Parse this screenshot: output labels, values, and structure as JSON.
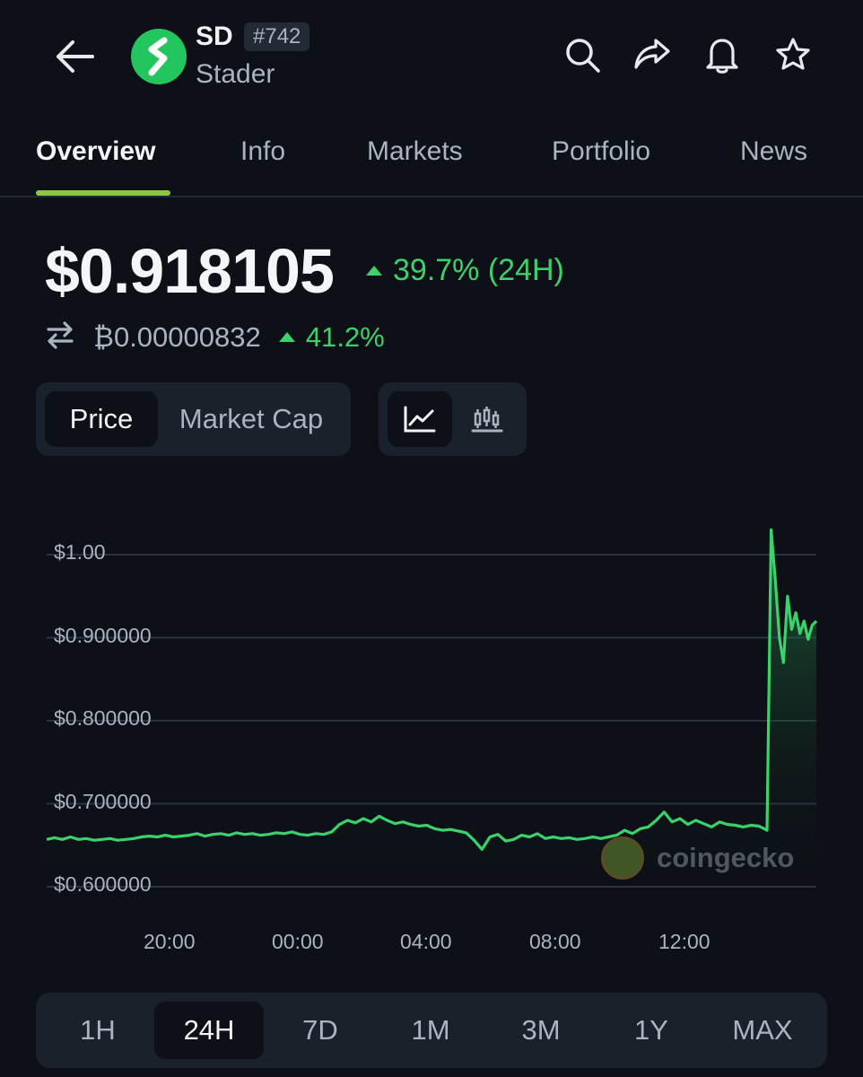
{
  "header": {
    "symbol": "SD",
    "rank": "#742",
    "name": "Stader"
  },
  "tabs": [
    {
      "label": "Overview",
      "active": true
    },
    {
      "label": "Info"
    },
    {
      "label": "Markets"
    },
    {
      "label": "Portfolio"
    },
    {
      "label": "News"
    }
  ],
  "price": {
    "usd": "$0.918105",
    "change_24h": "39.7% (24H)",
    "btc": "₿0.00000832",
    "btc_change": "41.2%"
  },
  "chart_toggle": {
    "price_label": "Price",
    "market_cap_label": "Market Cap",
    "selected": "Price",
    "style_selected": "line"
  },
  "chart_data": {
    "type": "area",
    "ylabels": [
      "$1.00",
      "$0.900000",
      "$0.800000",
      "$0.700000",
      "$0.600000"
    ],
    "yticks": [
      1.0,
      0.9,
      0.8,
      0.7,
      0.6
    ],
    "ylim": [
      0.6,
      1.0
    ],
    "xlabels": [
      "20:00",
      "00:00",
      "04:00",
      "08:00",
      "12:00"
    ],
    "color": "#39d26b",
    "series": [
      {
        "values": [
          0.657,
          0.659,
          0.657,
          0.66,
          0.657,
          0.658,
          0.656,
          0.657,
          0.658,
          0.656,
          0.657,
          0.658,
          0.66,
          0.661,
          0.66,
          0.662,
          0.66,
          0.661,
          0.662,
          0.664,
          0.661,
          0.663,
          0.664,
          0.662,
          0.665,
          0.663,
          0.664,
          0.662,
          0.663,
          0.665,
          0.664,
          0.666,
          0.663,
          0.662,
          0.664,
          0.663,
          0.666,
          0.675,
          0.68,
          0.677,
          0.682,
          0.678,
          0.685,
          0.68,
          0.676,
          0.678,
          0.675,
          0.673,
          0.674,
          0.67,
          0.668,
          0.669,
          0.667,
          0.665,
          0.656,
          0.645,
          0.66,
          0.663,
          0.655,
          0.657,
          0.662,
          0.66,
          0.664,
          0.658,
          0.66,
          0.658,
          0.659,
          0.657,
          0.658,
          0.66,
          0.658,
          0.66,
          0.662,
          0.668,
          0.664,
          0.67,
          0.672,
          0.68,
          0.69,
          0.678,
          0.682,
          0.675,
          0.68,
          0.676,
          0.672,
          0.678,
          0.675,
          0.674,
          0.672,
          0.674,
          0.673,
          0.668,
          1.03,
          0.97,
          0.9,
          0.87,
          0.95,
          0.91,
          0.93,
          0.905,
          0.92,
          0.898,
          0.915,
          0.92
        ]
      }
    ]
  },
  "timeframes": [
    {
      "label": "1H"
    },
    {
      "label": "24H",
      "active": true
    },
    {
      "label": "7D"
    },
    {
      "label": "1M"
    },
    {
      "label": "3M"
    },
    {
      "label": "1Y"
    },
    {
      "label": "MAX"
    }
  ],
  "watermark": "coingecko",
  "icons": [
    "back-arrow-icon",
    "search-icon",
    "share-icon",
    "bell-icon",
    "star-icon",
    "swap-icon",
    "line-chart-icon",
    "candlestick-icon"
  ]
}
